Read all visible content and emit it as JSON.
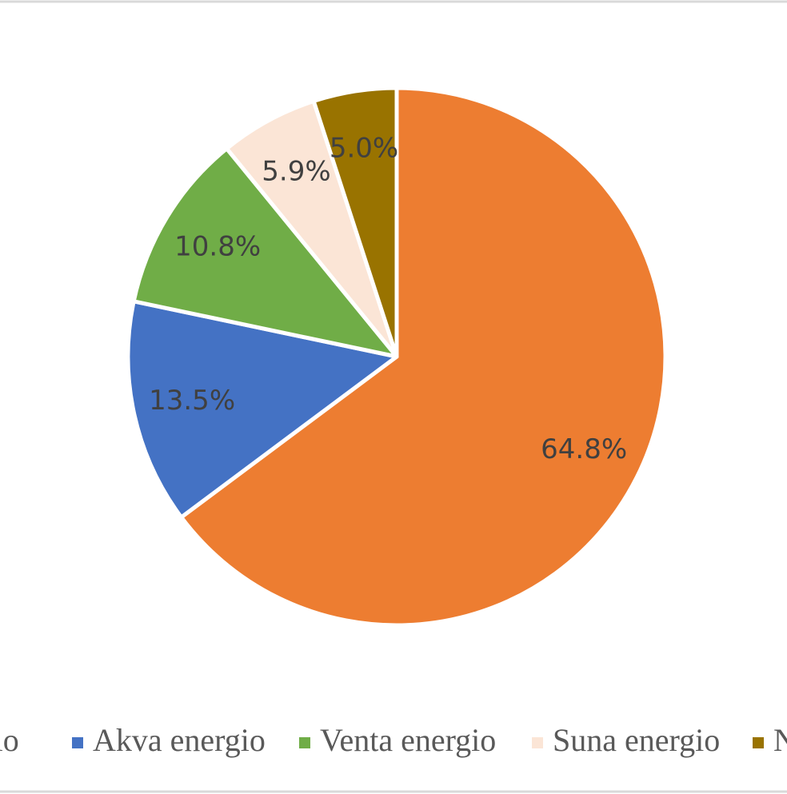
{
  "chart_data": {
    "type": "pie",
    "categories": [
      "rgio",
      "Akva energio",
      "Venta energio",
      "Suna energio",
      "N"
    ],
    "values": [
      64.8,
      13.5,
      10.8,
      5.9,
      5.0
    ],
    "value_labels": [
      "64.8%",
      "13.5%",
      "10.8%",
      "5.9%",
      "5.0%"
    ],
    "colors": [
      "#ED7D31",
      "#4472C4",
      "#70AD47",
      "#FBE5D6",
      "#997300"
    ],
    "legend": "bottom"
  }
}
